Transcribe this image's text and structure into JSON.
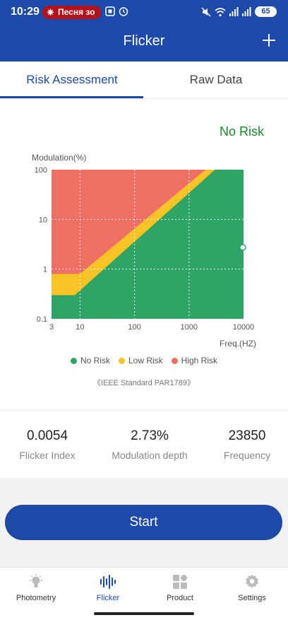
{
  "status_bar": {
    "time": "10:29",
    "notification_pill": "Песня зо",
    "battery": "65"
  },
  "app_bar": {
    "title": "Flicker",
    "add_icon": "plus-icon"
  },
  "tabs": [
    {
      "label": "Risk Assessment",
      "active": true
    },
    {
      "label": "Raw Data",
      "active": false
    }
  ],
  "risk": {
    "result": "No Risk",
    "result_color": "#1a8a2a"
  },
  "chart_data": {
    "type": "area",
    "ylabel": "Modulation(%)",
    "xlabel": "Freq.(HZ)",
    "x_scale": "log",
    "y_scale": "log",
    "x_ticks": [
      "3",
      "10",
      "100",
      "1000",
      "10000"
    ],
    "y_ticks": [
      "100",
      "10",
      "1",
      "0.1"
    ],
    "xlim": [
      3,
      10000
    ],
    "ylim": [
      0.1,
      100
    ],
    "grid": true,
    "series": [
      {
        "name": "No Risk",
        "color": "#2ea567",
        "boundary": [
          [
            3,
            0.3
          ],
          [
            8,
            0.3
          ],
          [
            3000,
            100
          ]
        ]
      },
      {
        "name": "Low Risk",
        "color": "#f7c325",
        "boundary": [
          [
            3,
            0.8
          ],
          [
            10,
            0.8
          ],
          [
            2000,
            100
          ]
        ]
      },
      {
        "name": "High Risk",
        "color": "#ee6f64"
      }
    ],
    "marker": {
      "x": 10000,
      "y": 2.73
    },
    "legend_position": "bottom",
    "source": "《IEEE Standard PAR1789》"
  },
  "metrics": [
    {
      "value": "0.0054",
      "label": "Flicker Index"
    },
    {
      "value": "2.73%",
      "label": "Modulation depth"
    },
    {
      "value": "23850",
      "label": "Frequency"
    }
  ],
  "start_button": {
    "label": "Start"
  },
  "bottom_nav": [
    {
      "label": "Photometry",
      "icon": "bulb-icon",
      "active": false
    },
    {
      "label": "Flicker",
      "icon": "waveform-icon",
      "active": true
    },
    {
      "label": "Product",
      "icon": "grid-icon",
      "active": false
    },
    {
      "label": "Settings",
      "icon": "gear-icon",
      "active": false
    }
  ],
  "colors": {
    "primary": "#1d4aa8",
    "no_risk": "#2ea567",
    "low_risk": "#f7c325",
    "high_risk": "#ee6f64"
  }
}
